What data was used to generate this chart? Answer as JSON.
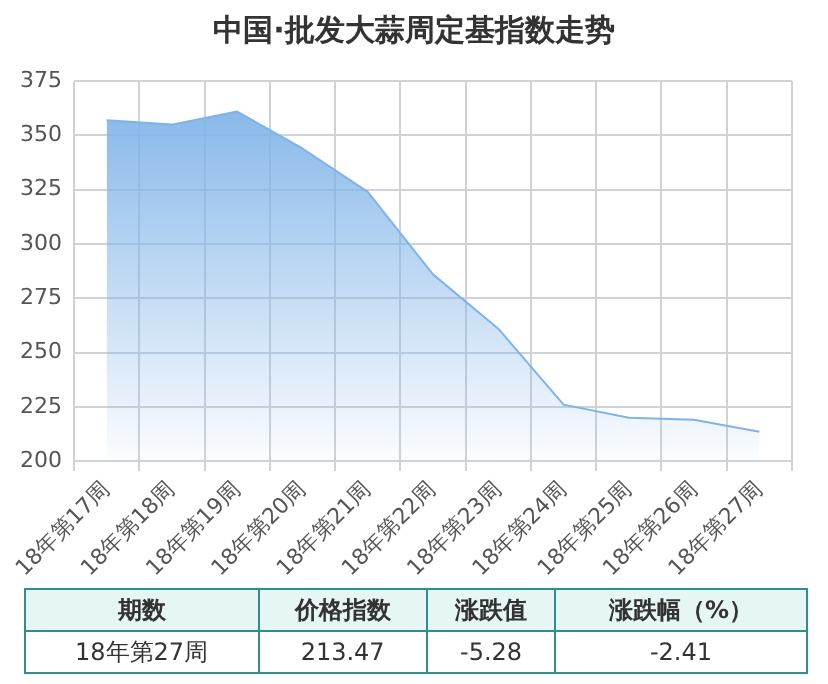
{
  "chart_data": {
    "type": "area",
    "title": "中国·批发大蒜周定基指数走势",
    "categories": [
      "18年第17周",
      "18年第18周",
      "18年第19周",
      "18年第20周",
      "18年第21周",
      "18年第22周",
      "18年第23周",
      "18年第24周",
      "18年第25周",
      "18年第26周",
      "18年第27周"
    ],
    "series": [
      {
        "color": "#7fb3e8",
        "values": [
          357,
          355,
          361,
          344,
          324,
          286,
          261,
          226,
          220,
          219,
          213.47
        ]
      }
    ],
    "ylim": [
      200,
      375
    ],
    "yticks": [
      200,
      225,
      250,
      275,
      300,
      325,
      350,
      375
    ],
    "grid": true,
    "legend": false,
    "annotations": [
      "期数",
      "价格指数",
      "涨跌值",
      "涨跌幅（%）",
      "18年第27周",
      "213.47",
      "-5.28",
      "-2.41"
    ]
  }
}
